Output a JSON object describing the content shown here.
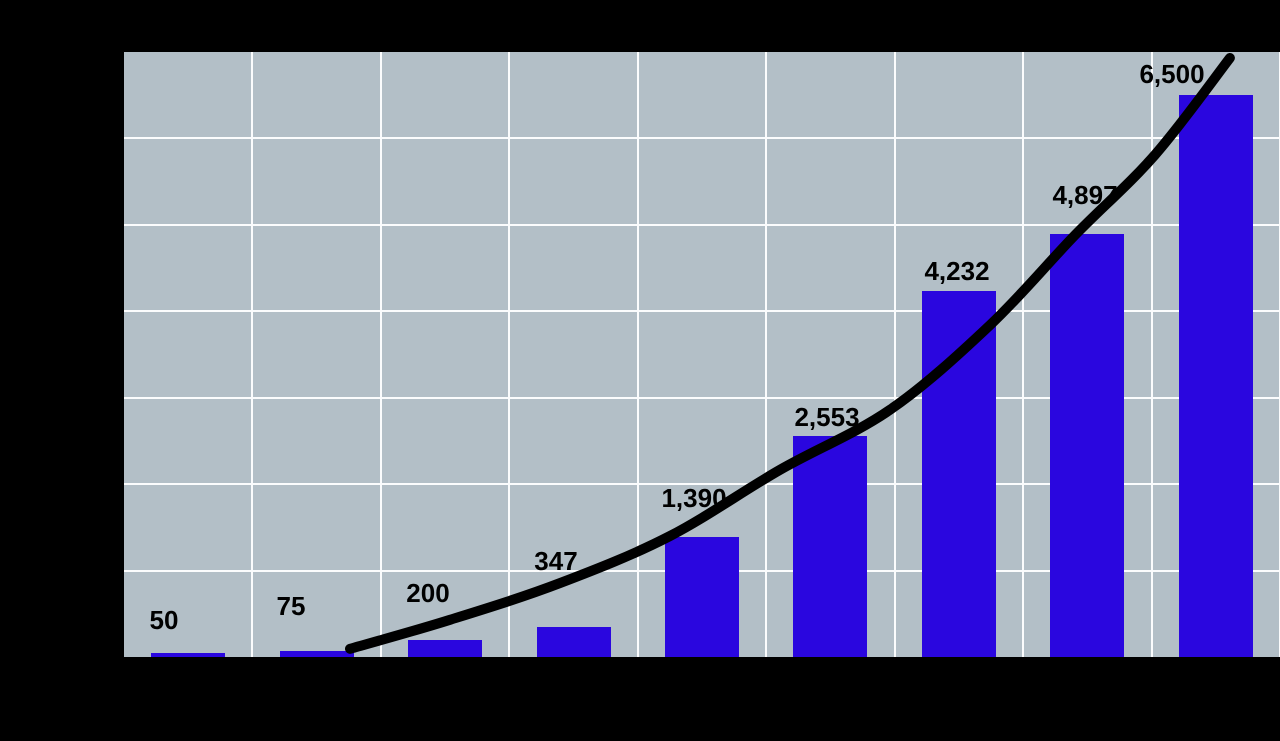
{
  "chart_data": {
    "type": "bar",
    "title": "",
    "categories": [
      "",
      "",
      "",
      "",
      "",
      "",
      "",
      "",
      ""
    ],
    "values": [
      50,
      75,
      200,
      347,
      1390,
      2553,
      4232,
      4897,
      6500
    ],
    "value_labels": [
      "50",
      "75",
      "200",
      "347",
      "1,390",
      "2,553",
      "4,232",
      "4,897",
      "6,500"
    ],
    "xlabel": "",
    "ylabel": "",
    "ylim": [
      0,
      7000
    ],
    "grid": {
      "visible": true,
      "horizontal_step": 1000,
      "vertical_divisions": 9
    },
    "legend": "none",
    "colors": {
      "bar": "#2a06df",
      "plot_background": "#b3bfc7",
      "gridline": "#fbfcfd",
      "page_background": "#000000",
      "data_label": "#000000",
      "trendline": "#000000"
    },
    "trendline": {
      "type": "smooth-curve",
      "stroke_width": 10,
      "points": [
        {
          "x_frac": 0.1955,
          "value": 95
        },
        {
          "x_frac": 0.282,
          "value": 430
        },
        {
          "x_frac": 0.3772,
          "value": 855
        },
        {
          "x_frac": 0.4723,
          "value": 1400
        },
        {
          "x_frac": 0.5674,
          "value": 2165
        },
        {
          "x_frac": 0.6626,
          "value": 2860
        },
        {
          "x_frac": 0.7491,
          "value": 3840
        },
        {
          "x_frac": 0.8226,
          "value": 4880
        },
        {
          "x_frac": 0.8918,
          "value": 5810
        },
        {
          "x_frac": 0.9567,
          "value": 6930
        }
      ]
    }
  }
}
